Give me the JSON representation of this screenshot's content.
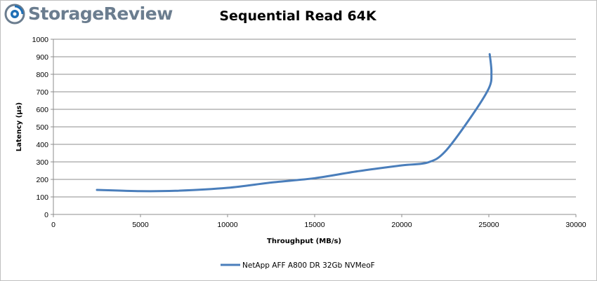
{
  "brand": {
    "name": "StorageReview",
    "logo_icon": "storagereview-swirl-icon",
    "logo_color": "#6b7d8f",
    "logo_accent": "#1f6fb5"
  },
  "chart_data": {
    "type": "line",
    "title": "Sequential Read 64K",
    "xlabel": "Throughput (MB/s)",
    "ylabel": "Latency (µs)",
    "xlim": [
      0,
      30000
    ],
    "ylim": [
      0,
      1000
    ],
    "x_ticks": [
      0,
      5000,
      10000,
      15000,
      20000,
      25000,
      30000
    ],
    "y_ticks": [
      0,
      100,
      200,
      300,
      400,
      500,
      600,
      700,
      800,
      900,
      1000
    ],
    "grid": "horizontal",
    "legend_position": "bottom",
    "series": [
      {
        "name": "NetApp AFF A800 DR 32Gb NVMeoF",
        "color": "#4a7ebb",
        "x": [
          2500,
          5000,
          7000,
          10000,
          12500,
          15000,
          17500,
          20000,
          21500,
          22500,
          24000,
          25000,
          25150,
          25050
        ],
        "y": [
          140,
          133,
          135,
          152,
          182,
          207,
          247,
          280,
          297,
          360,
          560,
          720,
          810,
          915
        ]
      }
    ]
  }
}
